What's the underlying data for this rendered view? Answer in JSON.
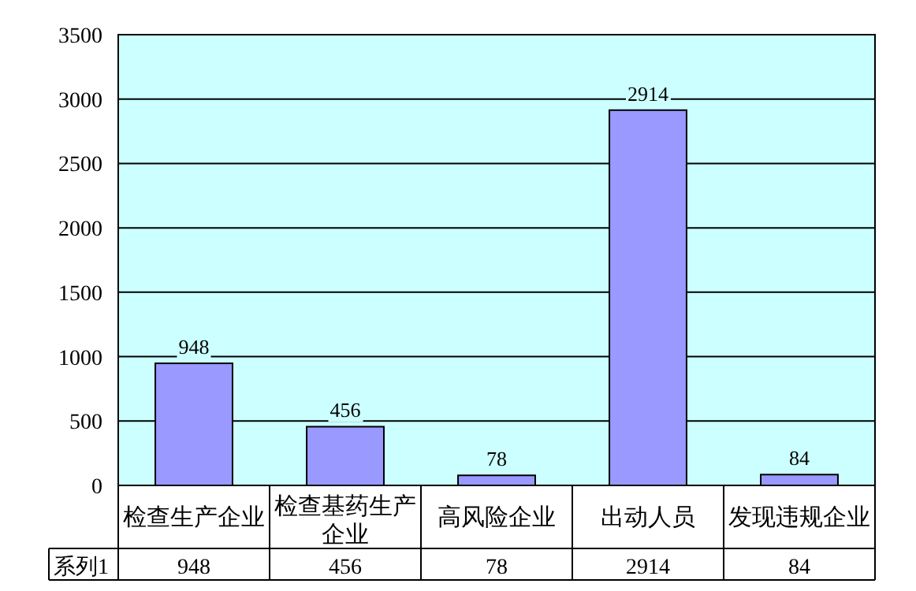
{
  "chart_data": {
    "type": "bar",
    "categories": [
      "检查生产企业",
      "检查基药生产企业",
      "高风险企业",
      "出动人员",
      "发现违规企业"
    ],
    "series": [
      {
        "name": "系列1",
        "color": "#9999ff",
        "values": [
          948,
          456,
          78,
          2914,
          84
        ],
        "value_labels": [
          "948",
          "456",
          "78",
          "2914",
          "84"
        ]
      }
    ],
    "ylim": [
      0,
      3500
    ],
    "yticks": [
      0,
      500,
      1000,
      1500,
      2000,
      2500,
      3000,
      3500
    ],
    "grid": "y",
    "data_labels": true,
    "legend": "bottom left"
  }
}
